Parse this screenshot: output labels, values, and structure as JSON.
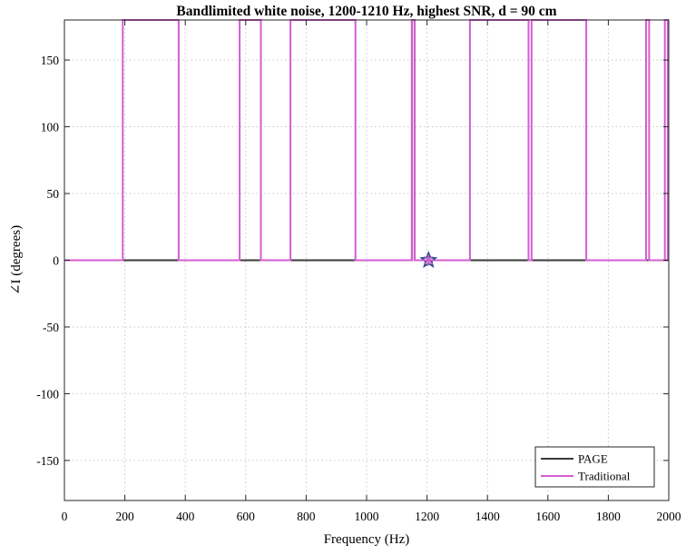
{
  "chart_data": {
    "type": "line",
    "title": "Bandlimited white noise, 1200-1210 Hz, highest SNR, d = 90 cm",
    "xlabel": "Frequency (Hz)",
    "ylabel": "∠I (degrees)",
    "xlim": [
      0,
      2000
    ],
    "ylim": [
      -180,
      180
    ],
    "xticks": [
      0,
      200,
      400,
      600,
      800,
      1000,
      1200,
      1400,
      1600,
      1800,
      2000
    ],
    "yticks": [
      -150,
      -100,
      -50,
      0,
      50,
      100,
      150
    ],
    "grid": true,
    "legend_position": "bottom-right",
    "series": [
      {
        "name": "PAGE",
        "color": "#3a3a3a",
        "style": "line",
        "steps": [
          [
            0,
            0
          ],
          [
            1150,
            0
          ],
          [
            1150,
            180
          ],
          [
            1159,
            180
          ],
          [
            1159,
            0
          ],
          [
            2000,
            0
          ]
        ]
      },
      {
        "name": "Traditional",
        "color": "#d35ed3",
        "style": "line",
        "steps": [
          [
            0,
            0
          ],
          [
            193,
            0
          ],
          [
            193,
            180
          ],
          [
            378,
            180
          ],
          [
            378,
            0
          ],
          [
            580,
            0
          ],
          [
            580,
            180
          ],
          [
            650,
            180
          ],
          [
            650,
            0
          ],
          [
            748,
            0
          ],
          [
            748,
            180
          ],
          [
            963,
            180
          ],
          [
            963,
            0
          ],
          [
            1150,
            0
          ],
          [
            1150,
            180
          ],
          [
            1159,
            180
          ],
          [
            1159,
            0
          ],
          [
            1342,
            0
          ],
          [
            1342,
            180
          ],
          [
            1536,
            180
          ],
          [
            1536,
            0
          ],
          [
            1546,
            0
          ],
          [
            1546,
            180
          ],
          [
            1727,
            180
          ],
          [
            1727,
            0
          ],
          [
            1925,
            0
          ],
          [
            1925,
            180
          ],
          [
            1935,
            180
          ],
          [
            1935,
            0
          ],
          [
            1987,
            0
          ],
          [
            1987,
            180
          ],
          [
            1997,
            180
          ],
          [
            1997,
            0
          ],
          [
            2000,
            0
          ]
        ]
      }
    ],
    "markers": [
      {
        "x": 1205,
        "y": 0,
        "shape": "star",
        "color": "#2c4f8a"
      },
      {
        "x": 1205,
        "y": 0,
        "shape": "asterisk",
        "color": "#d35ed3"
      }
    ]
  }
}
